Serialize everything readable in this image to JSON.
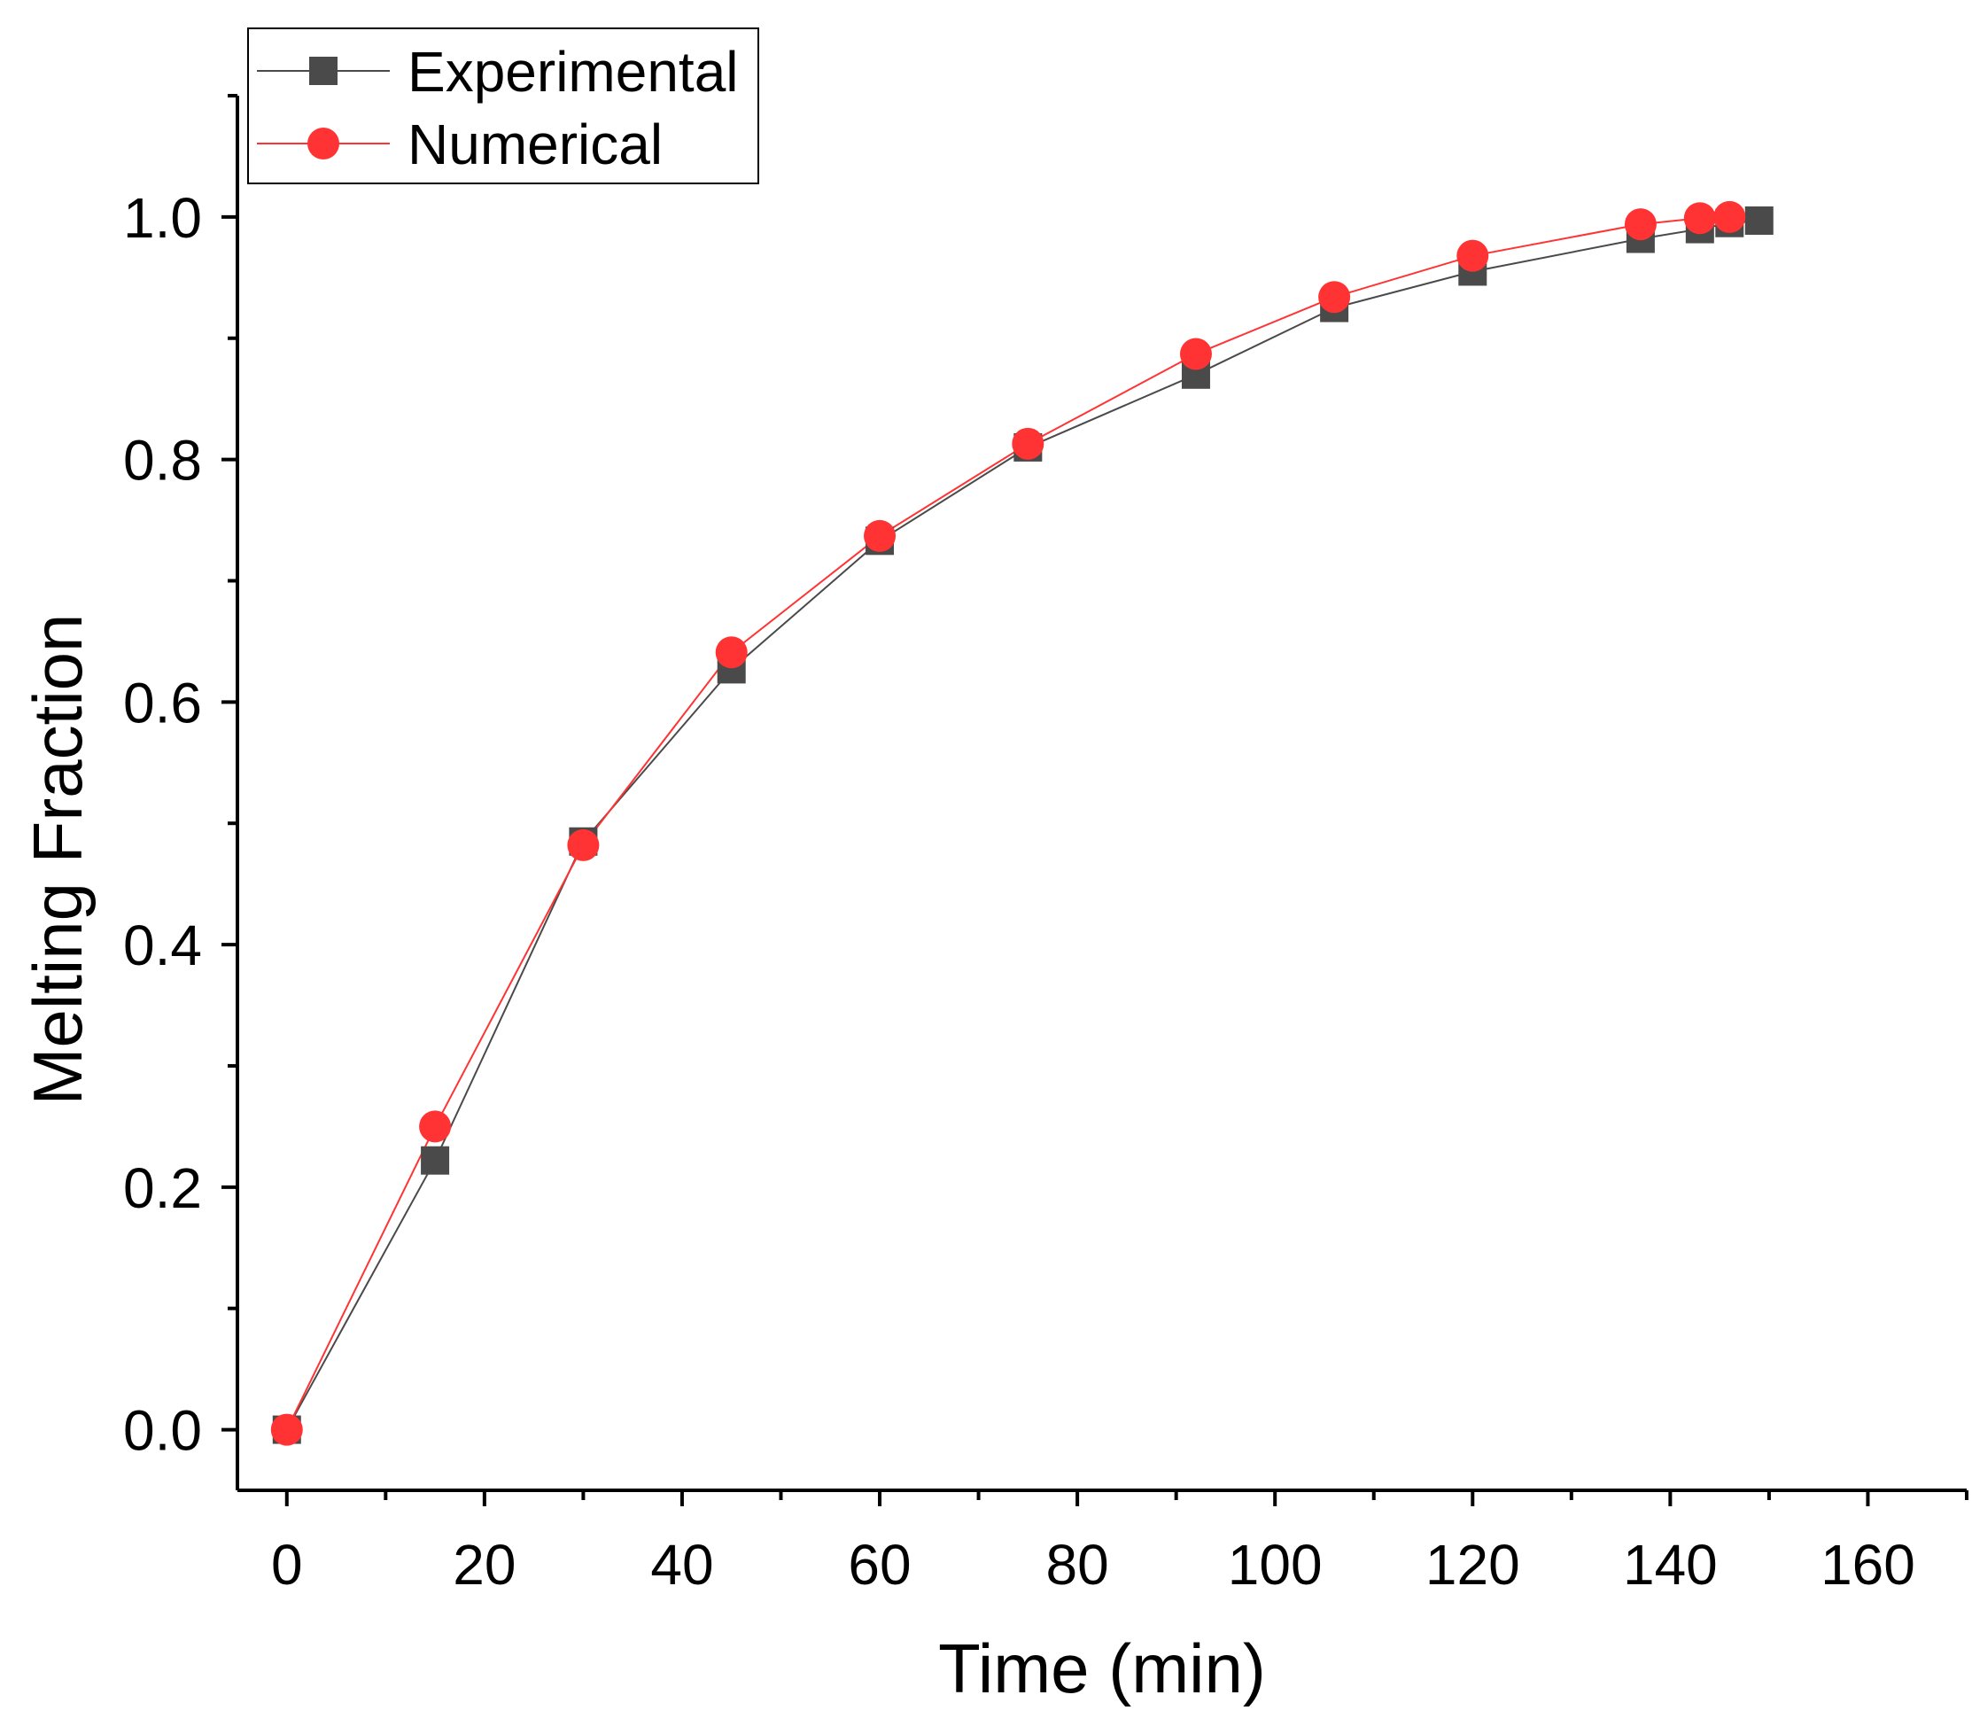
{
  "chart_data": {
    "type": "line",
    "title": "",
    "xlabel": "Time (min)",
    "ylabel": "Melting Fraction",
    "xlim": [
      -5,
      170
    ],
    "ylim": [
      -0.05,
      1.1
    ],
    "xticks": [
      0,
      20,
      40,
      60,
      80,
      100,
      120,
      140,
      160
    ],
    "xtick_labels": [
      "0",
      "20",
      "40",
      "60",
      "80",
      "100",
      "120",
      "140",
      "160"
    ],
    "yticks": [
      0.0,
      0.2,
      0.4,
      0.6,
      0.8,
      1.0
    ],
    "ytick_labels": [
      "0.0",
      "0.2",
      "0.4",
      "0.6",
      "0.8",
      "1.0"
    ],
    "grid": false,
    "legend_position": "top-left",
    "series": [
      {
        "name": "Experimental",
        "color": "#4a4a4a",
        "marker": "square",
        "x": [
          0,
          15,
          30,
          45,
          60,
          75,
          92,
          106,
          120,
          137,
          143,
          146,
          149
        ],
        "y": [
          0.0,
          0.222,
          0.485,
          0.627,
          0.733,
          0.81,
          0.87,
          0.925,
          0.955,
          0.982,
          0.99,
          0.995,
          0.997
        ]
      },
      {
        "name": "Numerical",
        "color": "#ff3333",
        "marker": "circle",
        "x": [
          0,
          15,
          30,
          45,
          60,
          75,
          92,
          106,
          120,
          137,
          143,
          146
        ],
        "y": [
          0.0,
          0.25,
          0.482,
          0.641,
          0.737,
          0.813,
          0.887,
          0.934,
          0.968,
          0.994,
          0.999,
          1.0
        ]
      }
    ]
  }
}
